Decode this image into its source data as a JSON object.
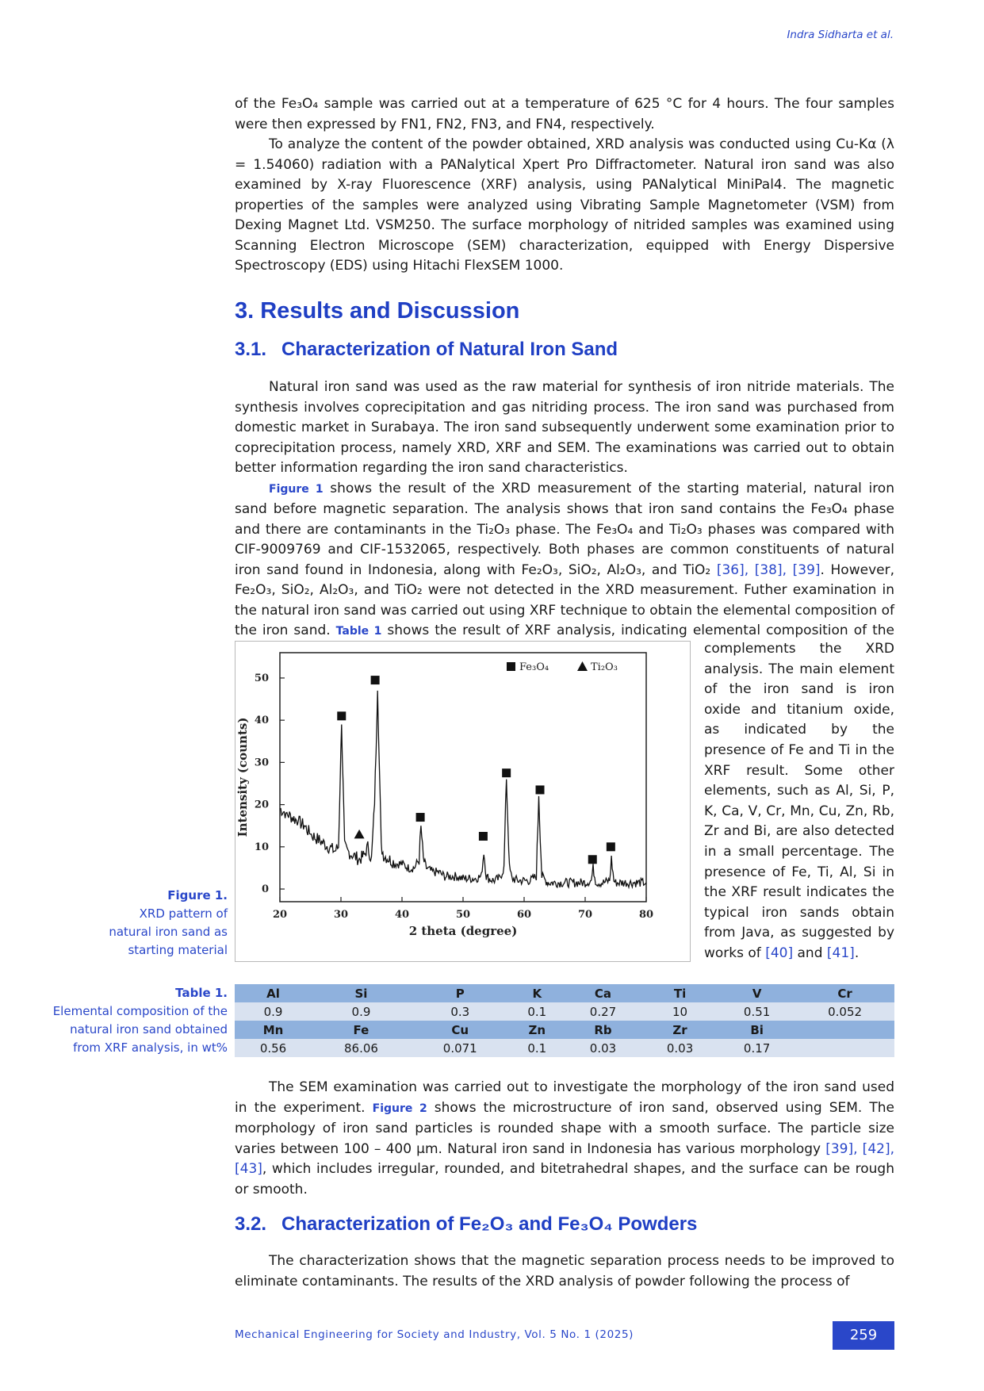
{
  "header": {
    "running_head": "Indra Sidharta et al."
  },
  "intro_paragraphs": [
    "of the Fe₃O₄ sample was carried out at a temperature of 625 °C for 4 hours. The four samples were then expressed by FN1, FN2, FN3, and FN4, respectively.",
    "To analyze the content of the powder obtained, XRD analysis was conducted using Cu-Kα (λ = 1.54060) radiation with a PANalytical Xpert Pro Diffractometer. Natural iron sand was also examined by X-ray Fluorescence (XRF) analysis, using PANalytical MiniPal4. The magnetic properties of the samples were analyzed using Vibrating Sample Magnetometer (VSM) from Dexing Magnet Ltd. VSM250. The surface morphology of nitrided samples was examined using Scanning Electron Microscope (SEM) characterization, equipped with Energy Dispersive Spectroscopy (EDS) using Hitachi FlexSEM 1000."
  ],
  "section3": {
    "title": "3. Results and Discussion"
  },
  "section31": {
    "num": "3.1.",
    "title": "Characterization of Natural Iron Sand",
    "p1": "Natural iron sand was used as the raw material for synthesis of iron nitride materials. The synthesis involves coprecipitation and gas nitriding process. The iron sand was purchased from domestic market in Surabaya. The iron sand subsequently underwent some examination prior to coprecipitation process, namely XRD, XRF and SEM. The examinations was carried out to obtain better information regarding the iron sand characteristics.",
    "p2_ref": "Figure 1",
    "p2_a": " shows the result of the XRD measurement of the starting material, natural iron sand before magnetic separation. The analysis shows that iron sand contains the Fe₃O₄ phase and there are contaminants in the Ti₂O₃ phase. The Fe₃O₄ and Ti₂O₃ phases was compared with CIF-9009769 and CIF-1532065, respectively. Both phases are common constituents of natural iron sand found in Indonesia, along with Fe₂O₃, SiO₂, Al₂O₃, and TiO₂ ",
    "p2_cites": "[36], [38], [39]",
    "p2_b": ". However, Fe₂O₃, SiO₂, Al₂O₃, and TiO₂ were not detected in the XRD measurement. Futher examination in the natural iron sand was carried out using XRF technique to obtain the elemental composition of the iron sand. ",
    "p2_table_ref": "Table 1",
    "p2_c": " shows the result of XRF analysis, indicating elemental  composition of the iron sand. The XRF result",
    "wrap_text": "complements the XRD analysis. The main element of the iron sand is iron oxide and titanium oxide, as indicated by the presence of Fe and Ti in the XRF result. Some other elements, such as Al, Si, P, K, Ca, V, Cr, Mn, Cu, Zn, Rb, Zr and Bi, are also detected in a small percentage. The presence of Fe, Ti, Al, Si in the XRF result indicates the typical iron sands obtain from Java, as suggested by works of ",
    "wrap_cite1": "[40]",
    "wrap_and": " and ",
    "wrap_cite2": "[41]",
    "wrap_end": ".",
    "p3_a": "The SEM examination was carried out to investigate the morphology of the iron sand used in the experiment. ",
    "p3_ref": "Figure 2",
    "p3_b": " shows the microstructure of iron sand, observed using SEM. The morphology of iron sand particles is rounded shape with a smooth surface. The particle size varies between 100 – 400 μm. Natural iron sand in Indonesia has various morphology ",
    "p3_cites": "[39], [42], [43]",
    "p3_c": ", which includes irregular, rounded, and bitetrahedral shapes, and the surface can be rough or smooth."
  },
  "figure1": {
    "label": "Figure 1.",
    "caption_lines": [
      "XRD pattern of",
      "natural iron sand as",
      "starting material"
    ]
  },
  "chart_data": {
    "type": "line",
    "xlabel": "2 theta (degree)",
    "ylabel": "Intensity (counts)",
    "xlim": [
      20,
      80
    ],
    "ylim": [
      -3,
      56
    ],
    "xticks": [
      20,
      30,
      40,
      50,
      60,
      70,
      80
    ],
    "yticks": [
      0,
      10,
      20,
      30,
      40,
      50
    ],
    "legend_position": "top-right",
    "legend": [
      {
        "marker": "square",
        "label": "Fe₃O₄"
      },
      {
        "marker": "triangle",
        "label": "Ti₂O₃"
      }
    ],
    "series": [
      {
        "x": [
          20,
          21,
          22,
          23,
          24,
          25,
          26,
          27,
          28,
          29,
          29.6,
          30.1,
          30.6,
          31,
          32,
          33,
          33.8,
          34.4,
          35,
          35.5,
          36,
          36.6,
          37,
          38,
          39,
          40,
          41,
          42,
          42.8,
          43.1,
          43.5,
          44,
          45,
          46,
          47,
          48,
          49,
          50,
          51,
          52,
          53,
          53.4,
          53.8,
          54.2,
          55,
          56,
          56.7,
          57.1,
          57.6,
          58,
          59,
          60,
          61,
          62,
          62.4,
          62.9,
          63.5,
          64,
          65,
          66,
          67,
          68,
          69,
          70,
          71,
          71.3,
          71.7,
          72,
          73,
          74,
          74.3,
          74.7,
          75,
          76,
          77,
          78,
          79,
          80
        ],
        "y": [
          19,
          18,
          17,
          16,
          15,
          13,
          12,
          11,
          10,
          9,
          10,
          39,
          10,
          9,
          8,
          7,
          8,
          10,
          7,
          20,
          47,
          10,
          8,
          7,
          6,
          6,
          5,
          5,
          7,
          15,
          7,
          5,
          4,
          4,
          3,
          3,
          3,
          2.5,
          2.5,
          2.5,
          3,
          9,
          3,
          2.5,
          2,
          2.5,
          5,
          26,
          5,
          2.5,
          2,
          2,
          2,
          3,
          22,
          3,
          2,
          1.5,
          1.5,
          1.5,
          1.5,
          1.5,
          1.5,
          1.5,
          2,
          5,
          2,
          1.5,
          1.5,
          2,
          7,
          2,
          1.5,
          1.5,
          1.5,
          1.5,
          1.5,
          1.5
        ]
      }
    ],
    "markers": [
      {
        "type": "square",
        "x": 30.1,
        "y": 41
      },
      {
        "type": "square",
        "x": 35.6,
        "y": 49.5
      },
      {
        "type": "triangle",
        "x": 33.0,
        "y": 13
      },
      {
        "type": "square",
        "x": 43.0,
        "y": 17
      },
      {
        "type": "square",
        "x": 53.3,
        "y": 12.5
      },
      {
        "type": "square",
        "x": 57.1,
        "y": 27.5
      },
      {
        "type": "square",
        "x": 62.6,
        "y": 23.5
      },
      {
        "type": "square",
        "x": 71.2,
        "y": 7
      },
      {
        "type": "square",
        "x": 74.2,
        "y": 10
      }
    ]
  },
  "table1": {
    "label": "Table 1.",
    "caption_lines": [
      "Elemental composition of the",
      "natural iron sand obtained",
      "from XRF analysis, in wt%"
    ],
    "row1_headers": [
      "Al",
      "Si",
      "P",
      "K",
      "Ca",
      "Ti",
      "V",
      "Cr"
    ],
    "row1_values": [
      "0.9",
      "0.9",
      "0.3",
      "0.1",
      "0.27",
      "10",
      "0.51",
      "0.052"
    ],
    "row2_headers": [
      "Mn",
      "Fe",
      "Cu",
      "Zn",
      "Rb",
      "Zr",
      "Bi",
      ""
    ],
    "row2_values": [
      "0.56",
      "86.06",
      "0.071",
      "0.1",
      "0.03",
      "0.03",
      "0.17",
      ""
    ]
  },
  "section32": {
    "num": "3.2.",
    "title": "Characterization of Fe₂O₃ and Fe₃O₄ Powders",
    "p1": "The characterization shows that the magnetic separation process needs to be improved to eliminate contaminants. The results of the XRD analysis of powder following the process of"
  },
  "footer": {
    "journal": "Mechanical Engineering for Society and Industry, Vol. 5 No. 1 (2025)",
    "page_number": "259"
  },
  "colors": {
    "accent": "#2a47c9",
    "table_header": "#8fb1dd",
    "table_row": "#d9e2f0"
  }
}
